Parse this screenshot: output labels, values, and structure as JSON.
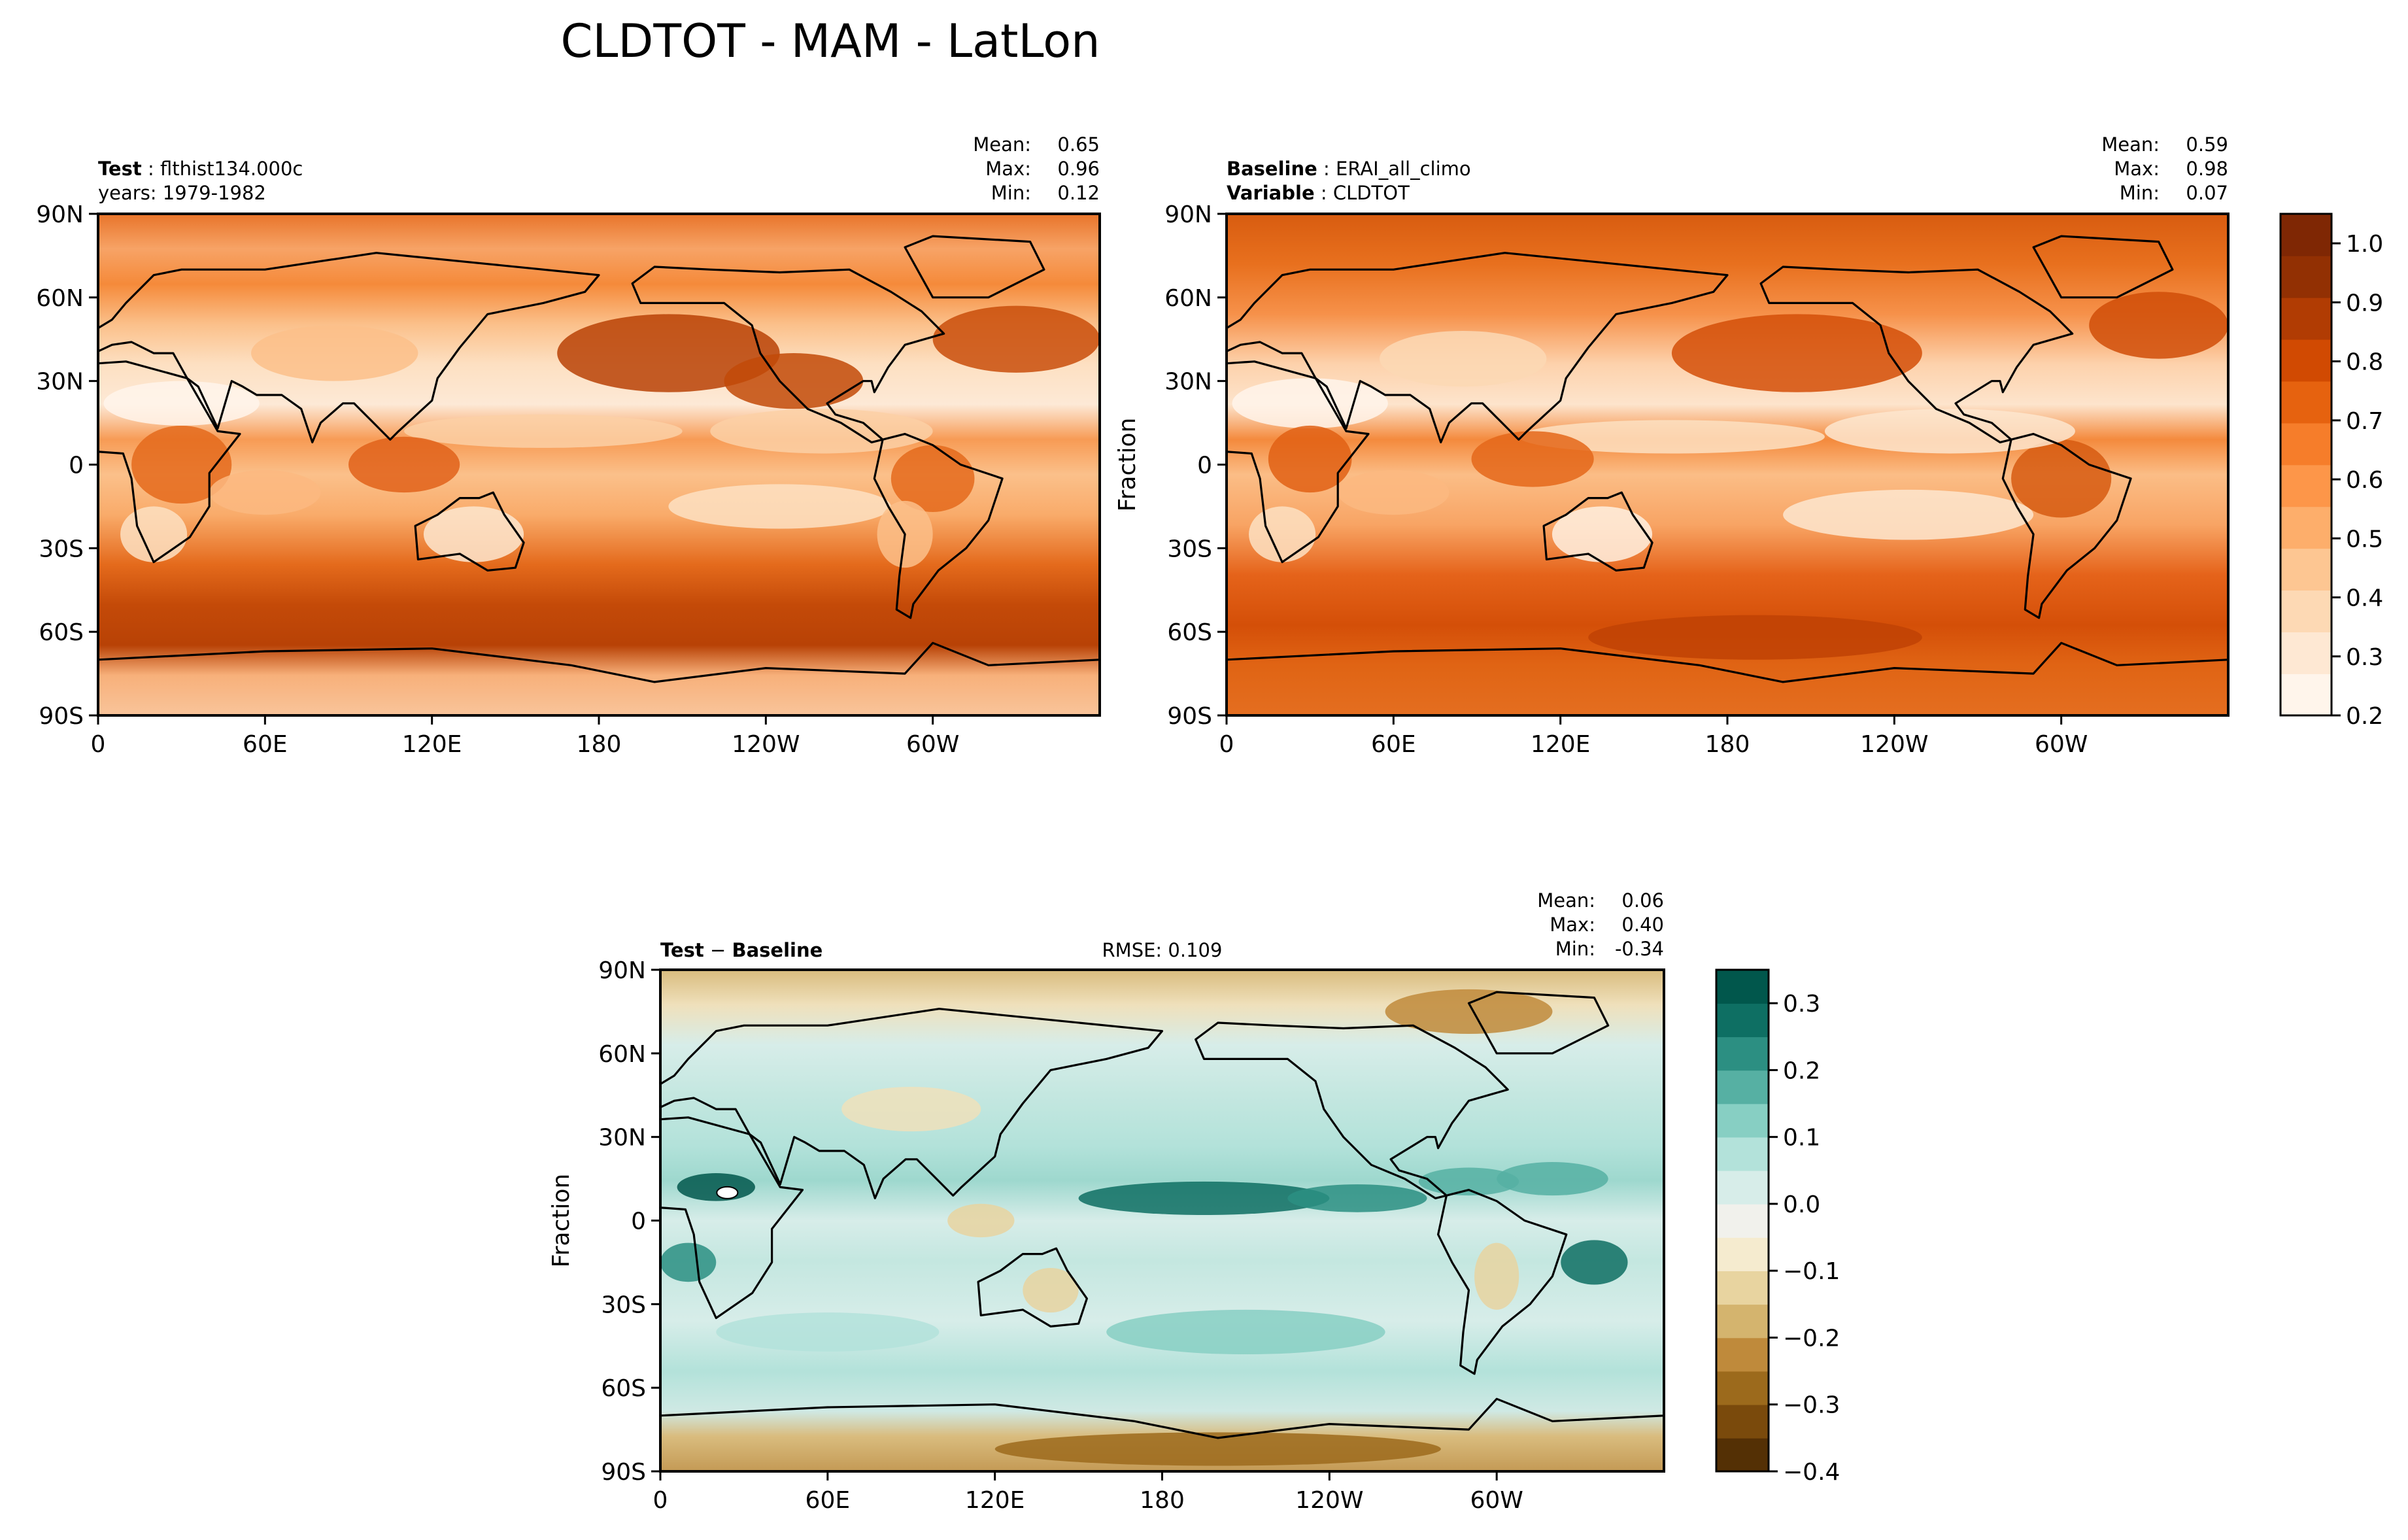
{
  "figure": {
    "title": "CLDTOT - MAM - LatLon"
  },
  "chart_data": [
    {
      "type": "heatmap",
      "id": "test",
      "left_label_bold": "Test",
      "left_label_value": "flthist134.000c",
      "left_label_line2": "years: 1979-1982",
      "stats": {
        "mean_label": "Mean:",
        "mean": "0.65",
        "max_label": "Max:",
        "max": "0.96",
        "min_label": "Min:",
        "min": "0.12"
      },
      "ylabel": "",
      "x_ticks": [
        "0",
        "60E",
        "120E",
        "180",
        "120W",
        "60W"
      ],
      "y_ticks": [
        "90N",
        "60N",
        "30N",
        "0",
        "30S",
        "60S",
        "90S"
      ],
      "xlim": [
        0,
        360
      ],
      "ylim": [
        -90,
        90
      ]
    },
    {
      "type": "heatmap",
      "id": "baseline",
      "left_label_bold": "Baseline",
      "left_label_value": "ERAI_all_climo",
      "left_label_bold2": "Variable",
      "left_label_value2": "CLDTOT",
      "stats": {
        "mean_label": "Mean:",
        "mean": "0.59",
        "max_label": "Max:",
        "max": "0.98",
        "min_label": "Min:",
        "min": "0.07"
      },
      "ylabel": "Fraction",
      "x_ticks": [
        "0",
        "60E",
        "120E",
        "180",
        "120W",
        "60W"
      ],
      "y_ticks": [
        "90N",
        "60N",
        "30N",
        "0",
        "30S",
        "60S",
        "90S"
      ],
      "xlim": [
        0,
        360
      ],
      "ylim": [
        -90,
        90
      ]
    },
    {
      "type": "heatmap",
      "id": "diff",
      "left_label_bold": "Test",
      "left_label_value": " − ",
      "left_label_bold2": "Baseline",
      "center_label": "RMSE: 0.109",
      "stats": {
        "mean_label": "Mean:",
        "mean": "0.06",
        "max_label": "Max:",
        "max": "0.40",
        "min_label": "Min:",
        "min": "-0.34"
      },
      "ylabel": "Fraction",
      "x_ticks": [
        "0",
        "60E",
        "120E",
        "180",
        "120W",
        "60W"
      ],
      "y_ticks": [
        "90N",
        "60N",
        "30N",
        "0",
        "30S",
        "60S",
        "90S"
      ],
      "xlim": [
        0,
        360
      ],
      "ylim": [
        -90,
        90
      ]
    }
  ],
  "colorbars": {
    "main": {
      "ticks": [
        "0.2",
        "0.3",
        "0.4",
        "0.5",
        "0.6",
        "0.7",
        "0.8",
        "0.9",
        "1.0"
      ],
      "tick_values": [
        0.2,
        0.3,
        0.4,
        0.5,
        0.6,
        0.7,
        0.8,
        0.9,
        1.0
      ],
      "range": [
        0.2,
        1.05
      ],
      "colors": [
        "#fff5eb",
        "#fee8d3",
        "#fdd9b4",
        "#fdc692",
        "#fdae6b",
        "#fd9649",
        "#f67d2a",
        "#e6620f",
        "#d14a02",
        "#b13c03",
        "#923003",
        "#7f2704"
      ]
    },
    "diff": {
      "ticks": [
        "−0.4",
        "−0.3",
        "−0.2",
        "−0.1",
        "0.0",
        "0.1",
        "0.2",
        "0.3"
      ],
      "tick_values": [
        -0.4,
        -0.3,
        -0.2,
        -0.1,
        0.0,
        0.1,
        0.2,
        0.3
      ],
      "range": [
        -0.4,
        0.35
      ],
      "colors": [
        "#543005",
        "#7a4a0c",
        "#9c6a1c",
        "#bf8a3b",
        "#d4b46e",
        "#e8d4a0",
        "#f5ebcf",
        "#f1f1ec",
        "#d7ede9",
        "#b3e2da",
        "#87cfc3",
        "#56b0a3",
        "#2c8f82",
        "#0e6f63",
        "#01574c"
      ]
    }
  }
}
